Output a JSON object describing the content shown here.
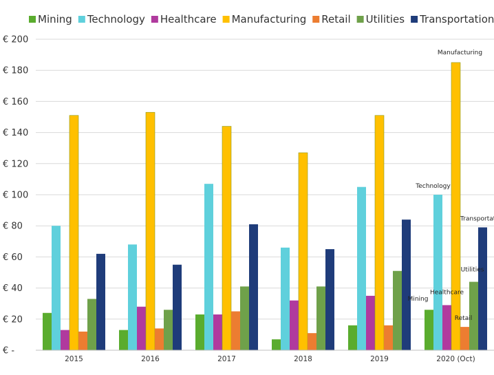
{
  "chart_data": {
    "type": "bar",
    "categories": [
      "2015",
      "2016",
      "2017",
      "2018",
      "2019",
      "2020 (Oct)"
    ],
    "series": [
      {
        "name": "Mining",
        "color": "#5aac2e",
        "values": [
          24,
          13,
          23,
          7,
          16,
          26
        ]
      },
      {
        "name": "Technology",
        "color": "#5fd0dc",
        "values": [
          80,
          68,
          107,
          66,
          105,
          100
        ]
      },
      {
        "name": "Healthcare",
        "color": "#b03a9e",
        "values": [
          13,
          28,
          23,
          32,
          35,
          29
        ]
      },
      {
        "name": "Manufacturing",
        "color": "#ffc000",
        "values": [
          151,
          153,
          144,
          127,
          151,
          185
        ]
      },
      {
        "name": "Retail",
        "color": "#ec7d31",
        "values": [
          12,
          14,
          25,
          11,
          16,
          15
        ]
      },
      {
        "name": "Utilities",
        "color": "#6fa14a",
        "values": [
          33,
          26,
          41,
          41,
          51,
          44
        ]
      },
      {
        "name": "Transportation",
        "color": "#1f3c7a",
        "values": [
          62,
          55,
          81,
          65,
          84,
          79
        ]
      }
    ],
    "y_ticks": [
      "€ -",
      "€ 20",
      "€ 40",
      "€ 60",
      "€ 80",
      "€ 100",
      "€ 120",
      "€ 140",
      "€ 160",
      "€ 180",
      "€ 200"
    ],
    "ylim": [
      0,
      200
    ],
    "grid": true,
    "legend_position": "top",
    "annotations": [
      {
        "category": "2020 (Oct)",
        "series": "Manufacturing",
        "text": "Manufacturing"
      },
      {
        "category": "2020 (Oct)",
        "series": "Technology",
        "text": "Technology"
      },
      {
        "category": "2020 (Oct)",
        "series": "Transportation",
        "text": "Transportation"
      },
      {
        "category": "2020 (Oct)",
        "series": "Healthcare",
        "text": "Healthcare"
      },
      {
        "category": "2020 (Oct)",
        "series": "Mining",
        "text": "Mining"
      },
      {
        "category": "2020 (Oct)",
        "series": "Utilities",
        "text": "Utilities"
      },
      {
        "category": "2020 (Oct)",
        "series": "Retail",
        "text": "Retail"
      }
    ]
  }
}
